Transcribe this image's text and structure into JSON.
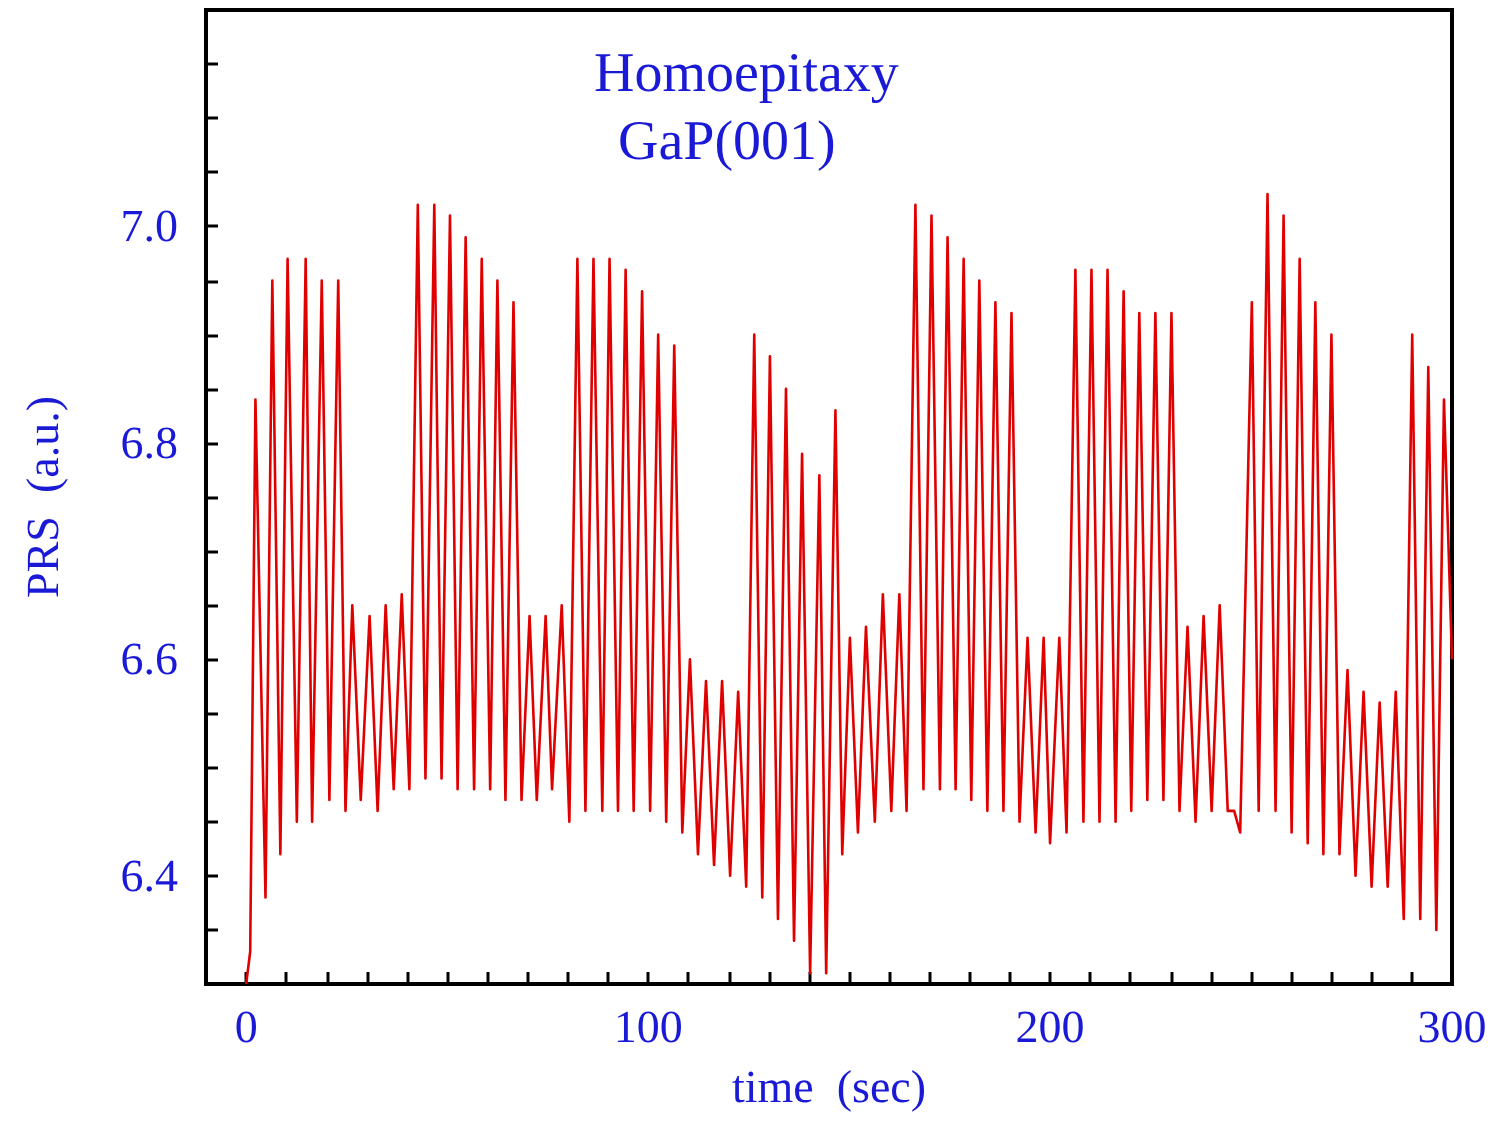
{
  "chart_data": {
    "type": "line",
    "title": "Homoepitaxy",
    "subtitle": "GaP(001)",
    "xlabel": "time  (sec)",
    "ylabel": "PRS  (a.u.)",
    "x": [
      0,
      1.0,
      2.3,
      4.8,
      6.5,
      8.5,
      10.3,
      12.6,
      14.8,
      16.4,
      18.8,
      20.7,
      22.9,
      24.7,
      26.4,
      28.5,
      30.7,
      32.7,
      34.7,
      36.7,
      38.7,
      40.6,
      42.7,
      44.6,
      46.8,
      48.6,
      50.7,
      52.6,
      54.6,
      56.7,
      58.6,
      60.7,
      62.5,
      64.5,
      66.5,
      68.5,
      70.5,
      72.3,
      74.5,
      76.1,
      78.5,
      80.4,
      82.4,
      84.4,
      86.4,
      88.6,
      90.4,
      92.5,
      94.4,
      96.4,
      98.5,
      100.5,
      102.5,
      104.5,
      106.5,
      108.5,
      110.4,
      112.4,
      114.4,
      116.4,
      118.4,
      120.4,
      122.4,
      124.4,
      126.4,
      128.4,
      130.3,
      132.3,
      134.3,
      136.3,
      138.3,
      140.3,
      142.6,
      144.3,
      146.6,
      148.3,
      150.2,
      152.2,
      154.2,
      156.4,
      158.4,
      160.5,
      162.5,
      164.3,
      166.5,
      168.5,
      170.5,
      172.6,
      174.5,
      176.5,
      178.5,
      180.4,
      182.4,
      184.4,
      186.4,
      188.4,
      190.4,
      192.4,
      194.4,
      196.4,
      198.4,
      200.0,
      202.3,
      204.1,
      206.3,
      208.3,
      210.3,
      212.3,
      214.3,
      216.3,
      218.3,
      220.2,
      222.2,
      224.2,
      226.2,
      228.2,
      230.2,
      232.2,
      234.2,
      236.2,
      238.2,
      240.2,
      242.2,
      244.2,
      245.8,
      247.3,
      250.2,
      251.9,
      254.1,
      256.1,
      258.1,
      260.1,
      262.1,
      264.1,
      266.0,
      268.0,
      270.0,
      272.0,
      274.0,
      276.0,
      278.0,
      280.0,
      282.0,
      284.0,
      286.0,
      288.0,
      290.1,
      292.1,
      294.1,
      296.1,
      298.0,
      300
    ],
    "series": [
      {
        "color": "#e00000",
        "values": [
          6.3,
          6.33,
          6.84,
          6.38,
          6.95,
          6.42,
          6.97,
          6.45,
          6.97,
          6.45,
          6.95,
          6.47,
          6.95,
          6.46,
          6.65,
          6.47,
          6.64,
          6.46,
          6.65,
          6.48,
          6.66,
          6.48,
          7.02,
          6.49,
          7.02,
          6.49,
          7.01,
          6.48,
          6.99,
          6.48,
          6.97,
          6.48,
          6.95,
          6.47,
          6.93,
          6.47,
          6.64,
          6.47,
          6.64,
          6.48,
          6.65,
          6.45,
          6.97,
          6.46,
          6.97,
          6.46,
          6.97,
          6.46,
          6.96,
          6.46,
          6.94,
          6.46,
          6.9,
          6.45,
          6.89,
          6.44,
          6.6,
          6.42,
          6.58,
          6.41,
          6.58,
          6.4,
          6.57,
          6.39,
          6.9,
          6.38,
          6.88,
          6.36,
          6.85,
          6.34,
          6.79,
          6.31,
          6.77,
          6.31,
          6.83,
          6.42,
          6.62,
          6.44,
          6.63,
          6.45,
          6.66,
          6.46,
          6.66,
          6.46,
          7.02,
          6.48,
          7.01,
          6.48,
          6.99,
          6.48,
          6.97,
          6.47,
          6.95,
          6.46,
          6.93,
          6.46,
          6.92,
          6.45,
          6.62,
          6.44,
          6.62,
          6.43,
          6.62,
          6.44,
          6.96,
          6.45,
          6.96,
          6.45,
          6.96,
          6.45,
          6.94,
          6.46,
          6.92,
          6.47,
          6.92,
          6.47,
          6.92,
          6.46,
          6.63,
          6.45,
          6.64,
          6.46,
          6.65,
          6.46,
          6.46,
          6.44,
          6.93,
          6.46,
          7.03,
          6.46,
          7.01,
          6.44,
          6.97,
          6.43,
          6.93,
          6.42,
          6.9,
          6.42,
          6.59,
          6.4,
          6.57,
          6.39,
          6.56,
          6.39,
          6.57,
          6.36,
          6.9,
          6.36,
          6.87,
          6.35,
          6.84,
          6.6
        ]
      }
    ],
    "xlim": [
      -10,
      300
    ],
    "xticks": [
      0,
      {
        "value": 10,
        "label": null
      },
      {
        "value": 20,
        "label": null
      },
      {
        "value": 30,
        "label": null
      },
      {
        "value": 40,
        "label": null
      },
      {
        "value": 50,
        "label": null
      },
      {
        "value": 60,
        "label": null
      },
      {
        "value": 70,
        "label": null
      },
      {
        "value": 80,
        "label": null
      },
      {
        "value": 90,
        "label": null
      },
      100,
      {
        "value": 110,
        "label": null
      },
      {
        "value": 120,
        "label": null
      },
      {
        "value": 130,
        "label": null
      },
      {
        "value": 140,
        "label": null
      },
      {
        "value": 150,
        "label": null
      },
      {
        "value": 160,
        "label": null
      },
      {
        "value": 170,
        "label": null
      },
      {
        "value": 180,
        "label": null
      },
      {
        "value": 190,
        "label": null
      },
      200,
      {
        "value": 210,
        "label": null
      },
      {
        "value": 220,
        "label": null
      },
      {
        "value": 230,
        "label": null
      },
      {
        "value": 240,
        "label": null
      },
      {
        "value": 250,
        "label": null
      },
      {
        "value": 260,
        "label": null
      },
      {
        "value": 270,
        "label": null
      },
      {
        "value": 280,
        "label": null
      },
      {
        "value": 290,
        "label": null
      },
      300
    ],
    "ylim": [
      6.3,
      7.2
    ],
    "yticks": [
      {
        "value": 6.35,
        "label": null
      },
      {
        "value": 6.4,
        "label": "6.4"
      },
      {
        "value": 6.45,
        "label": null
      },
      {
        "value": 6.5,
        "label": null
      },
      {
        "value": 6.55,
        "label": null
      },
      {
        "value": 6.6,
        "label": "6.6"
      },
      {
        "value": 6.65,
        "label": null
      },
      {
        "value": 6.7,
        "label": null
      },
      {
        "value": 6.75,
        "label": null
      },
      {
        "value": 6.8,
        "label": "6.8"
      },
      {
        "value": 6.85,
        "label": null
      },
      {
        "value": 6.9,
        "label": null
      },
      {
        "value": 6.95,
        "label": null
      },
      {
        "value": 7.0,
        "label": "7.0"
      },
      {
        "value": 7.05,
        "label": null
      },
      {
        "value": 7.1,
        "label": null
      },
      {
        "value": 7.15,
        "label": null
      }
    ],
    "marker": "none",
    "line_style": "solid"
  }
}
